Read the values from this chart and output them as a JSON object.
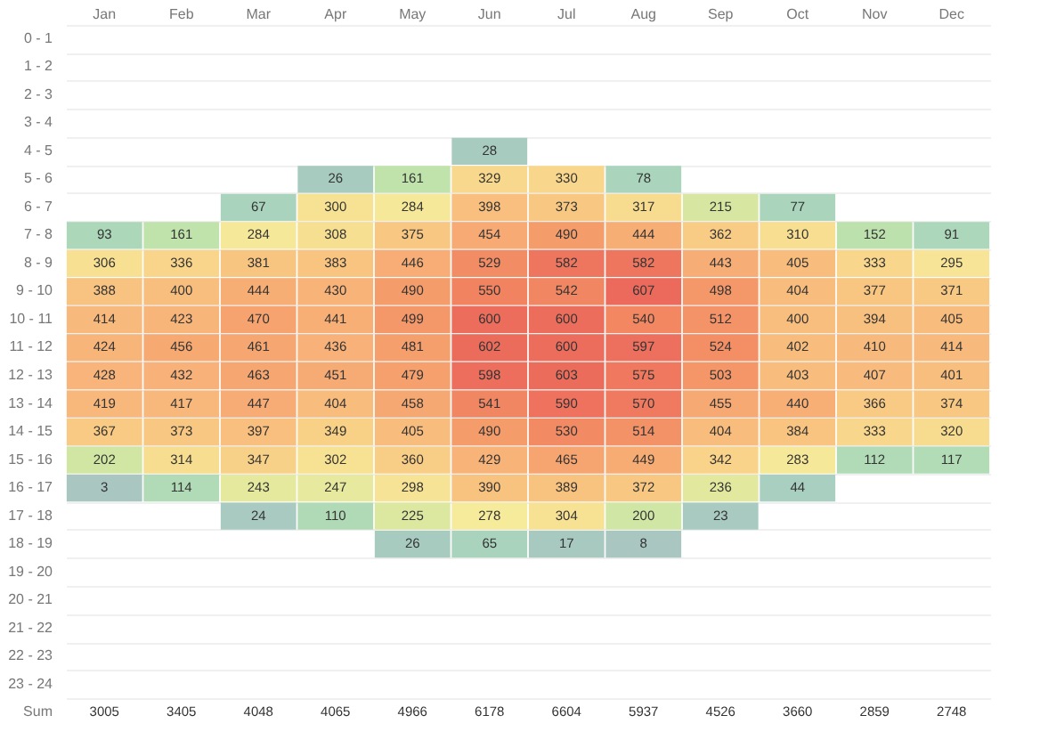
{
  "chart_data": {
    "type": "heatmap",
    "categories": [
      "Jan",
      "Feb",
      "Mar",
      "Apr",
      "May",
      "Jun",
      "Jul",
      "Aug",
      "Sep",
      "Oct",
      "Nov",
      "Dec"
    ],
    "y_categories": [
      "0 - 1",
      "1 - 2",
      "2 - 3",
      "3 - 4",
      "4 - 5",
      "5 - 6",
      "6 - 7",
      "7 - 8",
      "8 - 9",
      "9 - 10",
      "10 - 11",
      "11 - 12",
      "12 - 13",
      "13 - 14",
      "14 - 15",
      "15 - 16",
      "16 - 17",
      "17 - 18",
      "18 - 19",
      "19 - 20",
      "20 - 21",
      "21 - 22",
      "22 - 23",
      "23 - 24",
      "Sum"
    ],
    "cells": [
      [
        null,
        null,
        null,
        null,
        null,
        null,
        null,
        null,
        null,
        null,
        null,
        null
      ],
      [
        null,
        null,
        null,
        null,
        null,
        null,
        null,
        null,
        null,
        null,
        null,
        null
      ],
      [
        null,
        null,
        null,
        null,
        null,
        null,
        null,
        null,
        null,
        null,
        null,
        null
      ],
      [
        null,
        null,
        null,
        null,
        null,
        null,
        null,
        null,
        null,
        null,
        null,
        null
      ],
      [
        null,
        null,
        null,
        null,
        null,
        28,
        null,
        null,
        null,
        null,
        null,
        null
      ],
      [
        null,
        null,
        null,
        26,
        161,
        329,
        330,
        78,
        null,
        null,
        null,
        null
      ],
      [
        null,
        null,
        67,
        300,
        284,
        398,
        373,
        317,
        215,
        77,
        null,
        null
      ],
      [
        93,
        161,
        284,
        308,
        375,
        454,
        490,
        444,
        362,
        310,
        152,
        91
      ],
      [
        306,
        336,
        381,
        383,
        446,
        529,
        582,
        582,
        443,
        405,
        333,
        295
      ],
      [
        388,
        400,
        444,
        430,
        490,
        550,
        542,
        607,
        498,
        404,
        377,
        371
      ],
      [
        414,
        423,
        470,
        441,
        499,
        600,
        600,
        540,
        512,
        400,
        394,
        405
      ],
      [
        424,
        456,
        461,
        436,
        481,
        602,
        600,
        597,
        524,
        402,
        410,
        414
      ],
      [
        428,
        432,
        463,
        451,
        479,
        598,
        603,
        575,
        503,
        403,
        407,
        401
      ],
      [
        419,
        417,
        447,
        404,
        458,
        541,
        590,
        570,
        455,
        440,
        366,
        374
      ],
      [
        367,
        373,
        397,
        349,
        405,
        490,
        530,
        514,
        404,
        384,
        333,
        320
      ],
      [
        202,
        314,
        347,
        302,
        360,
        429,
        465,
        449,
        342,
        283,
        112,
        117
      ],
      [
        3,
        114,
        243,
        247,
        298,
        390,
        389,
        372,
        236,
        44,
        null,
        null
      ],
      [
        null,
        null,
        24,
        110,
        225,
        278,
        304,
        200,
        23,
        null,
        null,
        null
      ],
      [
        null,
        null,
        null,
        null,
        26,
        65,
        17,
        8,
        null,
        null,
        null,
        null
      ],
      [
        null,
        null,
        null,
        null,
        null,
        null,
        null,
        null,
        null,
        null,
        null,
        null
      ],
      [
        null,
        null,
        null,
        null,
        null,
        null,
        null,
        null,
        null,
        null,
        null,
        null
      ],
      [
        null,
        null,
        null,
        null,
        null,
        null,
        null,
        null,
        null,
        null,
        null,
        null
      ],
      [
        null,
        null,
        null,
        null,
        null,
        null,
        null,
        null,
        null,
        null,
        null,
        null
      ],
      [
        null,
        null,
        null,
        null,
        null,
        null,
        null,
        null,
        null,
        null,
        null,
        null
      ],
      [
        null,
        null,
        null,
        null,
        null,
        null,
        null,
        null,
        null,
        null,
        null,
        null
      ]
    ],
    "cell_labels": [
      [
        null,
        null,
        null,
        null,
        null,
        null,
        null,
        null,
        null,
        null,
        null,
        null
      ],
      [
        null,
        null,
        null,
        null,
        null,
        null,
        null,
        null,
        null,
        null,
        null,
        null
      ],
      [
        null,
        null,
        null,
        null,
        null,
        null,
        null,
        null,
        null,
        null,
        null,
        null
      ],
      [
        null,
        null,
        null,
        null,
        null,
        null,
        null,
        null,
        null,
        null,
        null,
        null
      ],
      [
        null,
        null,
        null,
        null,
        null,
        "28",
        null,
        null,
        null,
        null,
        null,
        null
      ],
      [
        null,
        null,
        null,
        "26",
        "161",
        "329",
        "330",
        "78",
        null,
        null,
        null,
        null
      ],
      [
        null,
        null,
        "67",
        "300",
        "284",
        "398",
        "373",
        "317",
        "215",
        "77",
        null,
        null
      ],
      [
        "93",
        "161",
        "284",
        "308",
        "375",
        "454",
        "490",
        "444",
        "362",
        "310",
        "152",
        "91"
      ],
      [
        "306",
        "336",
        "381",
        "383",
        "446",
        "529",
        "582",
        "582",
        "443",
        "405",
        "333",
        "295"
      ],
      [
        "388",
        "400",
        "444",
        "430",
        "490",
        "550",
        "542",
        "607",
        "498",
        "404",
        "377",
        "371"
      ],
      [
        "414",
        "423",
        "470",
        "441",
        "499",
        "600",
        "600",
        "540",
        "512",
        "400",
        "394",
        "405"
      ],
      [
        "424",
        "456",
        "461",
        "436",
        "481",
        "602",
        "600",
        "597",
        "524",
        "402",
        "410",
        "414"
      ],
      [
        "428",
        "432",
        "463",
        "451",
        "479",
        "598",
        "603",
        "575",
        "503",
        "403",
        "407",
        "401"
      ],
      [
        "419",
        "417",
        "447",
        "404",
        "458",
        "541",
        "590",
        "570",
        "455",
        "440",
        "366",
        "374"
      ],
      [
        "367",
        "373",
        "397",
        "349",
        "405",
        "490",
        "530",
        "514",
        "404",
        "384",
        "333",
        "320"
      ],
      [
        "202",
        "314",
        "347",
        "302",
        "360",
        "429",
        "465",
        "449",
        "342",
        "283",
        "112",
        "117"
      ],
      [
        "3",
        "114",
        "243",
        "247",
        "298",
        "390",
        "389",
        "372",
        "236",
        "44",
        null,
        null
      ],
      [
        null,
        null,
        "24",
        "110",
        "225",
        "278",
        "304",
        "200",
        "23",
        null,
        null,
        null
      ],
      [
        null,
        null,
        null,
        null,
        "26",
        "65",
        "17",
        "8",
        null,
        null,
        null,
        null
      ],
      [
        null,
        null,
        null,
        null,
        null,
        null,
        null,
        null,
        null,
        null,
        null,
        null
      ],
      [
        null,
        null,
        null,
        null,
        null,
        null,
        null,
        null,
        null,
        null,
        null,
        null
      ],
      [
        null,
        null,
        null,
        null,
        null,
        null,
        null,
        null,
        null,
        null,
        null,
        null
      ],
      [
        null,
        null,
        null,
        null,
        null,
        null,
        null,
        null,
        null,
        null,
        null,
        null
      ],
      [
        null,
        null,
        null,
        null,
        null,
        null,
        null,
        null,
        null,
        null,
        null,
        null
      ],
      [
        "3005",
        "3405",
        "4048",
        "4065",
        "4966",
        "6178",
        "6604",
        "5937",
        "4526",
        "3660",
        "2859",
        "2748"
      ]
    ],
    "grid": "y"
  }
}
